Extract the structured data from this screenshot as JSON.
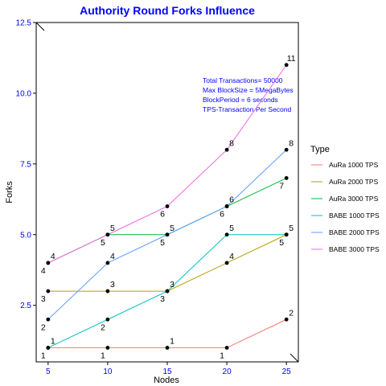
{
  "chart_data": {
    "type": "line",
    "title": "Authority Round Forks Influence",
    "xlabel": "Nodes",
    "ylabel": "Forks",
    "x": [
      5,
      10,
      15,
      20,
      25
    ],
    "xlim": [
      4,
      26
    ],
    "ylim": [
      0.5,
      12.5
    ],
    "xticks": [
      "5",
      "10",
      "15",
      "20",
      "25"
    ],
    "yticks": [
      "2.5",
      "5.0",
      "7.5",
      "10.0",
      "12.5"
    ],
    "yticks_values": [
      2.5,
      5.0,
      7.5,
      10.0,
      12.5
    ],
    "grid": false,
    "legend_title": "Type",
    "legend_position": "right",
    "annotations": [
      "Total Transactions= 50000",
      "Max BlockSize = 5MegaBytes",
      "BlockPeriod = 6 seconds",
      "TPS-Transaction Per Second"
    ],
    "series": [
      {
        "name": "AuRa 1000 TPS",
        "color": "#F8766D",
        "values": [
          1,
          1,
          1,
          1,
          2
        ],
        "label_side": [
          "below",
          "below",
          "above",
          "below",
          "above"
        ]
      },
      {
        "name": "AuRa 2000 TPS",
        "color": "#B79F00",
        "values": [
          3,
          3,
          3,
          4,
          5
        ],
        "label_side": [
          "below",
          "above",
          "below",
          "above",
          "below"
        ]
      },
      {
        "name": "AuRa 3000 TPS",
        "color": "#00BA38",
        "values": [
          4,
          5,
          5,
          6,
          7
        ],
        "label_side": [
          "below",
          "below",
          "above",
          "above",
          "below"
        ]
      },
      {
        "name": "BABE 1000 TPS",
        "color": "#00BFC4",
        "values": [
          1,
          2,
          3,
          5,
          5
        ],
        "label_side": [
          "above",
          "below",
          "above",
          "above",
          "above"
        ]
      },
      {
        "name": "BABE 2000 TPS",
        "color": "#619CFF",
        "values": [
          2,
          4,
          5,
          6,
          8
        ],
        "label_side": [
          "below",
          "above",
          "below",
          "below",
          "above"
        ]
      },
      {
        "name": "BABE 3000 TPS",
        "color": "#F564E3",
        "values": [
          4,
          5,
          6,
          8,
          11
        ],
        "label_side": [
          "above",
          "above",
          "below",
          "above",
          "above"
        ]
      }
    ]
  }
}
